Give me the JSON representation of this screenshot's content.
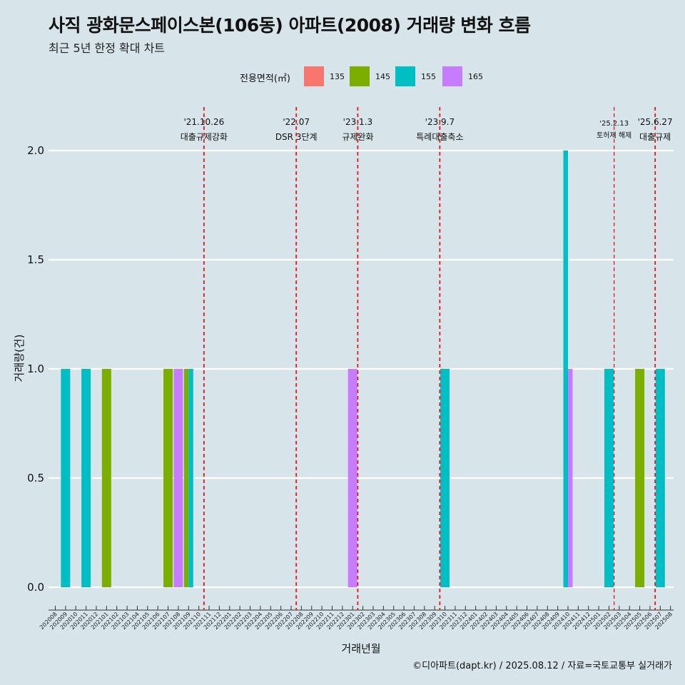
{
  "title": "사직 광화문스페이스본(106동) 아파트(2008) 거래량 변화 흐름",
  "subtitle": "최근 5년 한정 확대 차트",
  "caption": "©디아파트(dapt.kr) / 2025.08.12 / 자료=국토교통부 실거래가",
  "legend": {
    "title": "전용면적(㎡)",
    "items": [
      {
        "label": "135",
        "color": "#f8766d"
      },
      {
        "label": "145",
        "color": "#7cae00"
      },
      {
        "label": "155",
        "color": "#00bfc4"
      },
      {
        "label": "165",
        "color": "#c77cff"
      }
    ]
  },
  "chart_data": {
    "type": "bar",
    "xlabel": "거래년월",
    "ylabel": "거래량(건)",
    "ylim": [
      0,
      2.0
    ],
    "yticks": [
      "0.0",
      "0.5",
      "1.0",
      "1.5",
      "2.0"
    ],
    "grid": "horizontal",
    "categories": [
      "202008",
      "202009",
      "202010",
      "202011",
      "202012",
      "202101",
      "202102",
      "202103",
      "202104",
      "202105",
      "202106",
      "202107",
      "202108",
      "202109",
      "202110",
      "202111",
      "202112",
      "202201",
      "202202",
      "202203",
      "202204",
      "202205",
      "202206",
      "202207",
      "202208",
      "202209",
      "202210",
      "202211",
      "202212",
      "202301",
      "202302",
      "202303",
      "202304",
      "202305",
      "202306",
      "202307",
      "202308",
      "202309",
      "202310",
      "202311",
      "202312",
      "202401",
      "202402",
      "202403",
      "202404",
      "202405",
      "202406",
      "202407",
      "202408",
      "202409",
      "202410",
      "202411",
      "202412",
      "202501",
      "202502",
      "202503",
      "202504",
      "202505",
      "202506",
      "202507",
      "202508"
    ],
    "bars": [
      {
        "month": "202009",
        "area": "155",
        "value": 1
      },
      {
        "month": "202011",
        "area": "155",
        "value": 1
      },
      {
        "month": "202101",
        "area": "145",
        "value": 1
      },
      {
        "month": "202107",
        "area": "145",
        "value": 1
      },
      {
        "month": "202108",
        "area": "165",
        "value": 1
      },
      {
        "month": "202109",
        "area": "145",
        "value": 1
      },
      {
        "month": "202109",
        "area": "155",
        "value": 1
      },
      {
        "month": "202301",
        "area": "165",
        "value": 1
      },
      {
        "month": "202310",
        "area": "155",
        "value": 1
      },
      {
        "month": "202410",
        "area": "155",
        "value": 2
      },
      {
        "month": "202410",
        "area": "165",
        "value": 1
      },
      {
        "month": "202502",
        "area": "155",
        "value": 1
      },
      {
        "month": "202505",
        "area": "145",
        "value": 1
      },
      {
        "month": "202507",
        "area": "155",
        "value": 1
      }
    ],
    "annotations": [
      {
        "month": 14.5,
        "date": "'21.10.26",
        "text": "대출규제강화",
        "small": false
      },
      {
        "month": 23.5,
        "date": "'22.07",
        "text": "DSR 3단계",
        "small": false
      },
      {
        "month": 29.5,
        "date": "'23.1.3",
        "text": "규제완화",
        "small": false
      },
      {
        "month": 37.5,
        "date": "'23.9.7",
        "text": "특례대출축소",
        "small": false
      },
      {
        "month": 54.5,
        "date": "'25.2.13",
        "text": "토허제 해제",
        "small": true
      },
      {
        "month": 58.5,
        "date": "'25.6.27",
        "text": "대출규제",
        "small": false
      }
    ],
    "annotation_color": "#e31a1c"
  }
}
